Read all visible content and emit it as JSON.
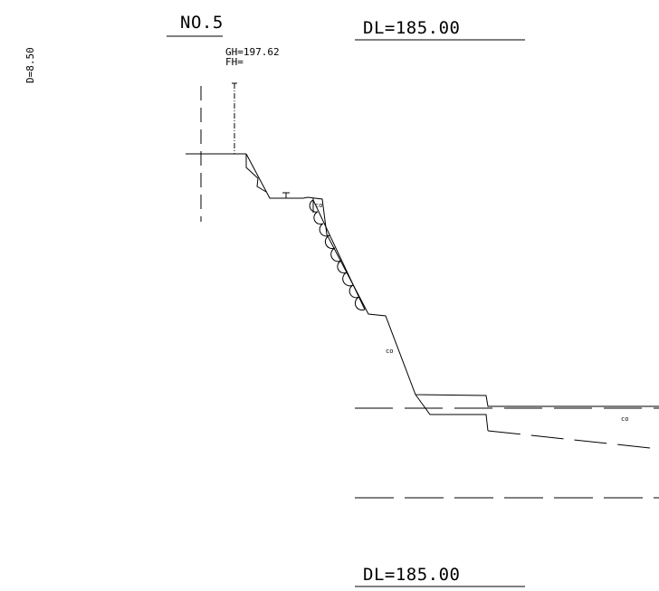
{
  "section": {
    "station": "NO.5",
    "ground_height": "GH=197.62",
    "formation_height": "FH=",
    "depth": "D=8.50",
    "datum_top": "DL=185.00",
    "datum_bottom": "DL=185.00"
  },
  "annotations": {
    "co_upper": "co",
    "co_slope": "co",
    "co_right": "co",
    "t_mark": "T"
  }
}
